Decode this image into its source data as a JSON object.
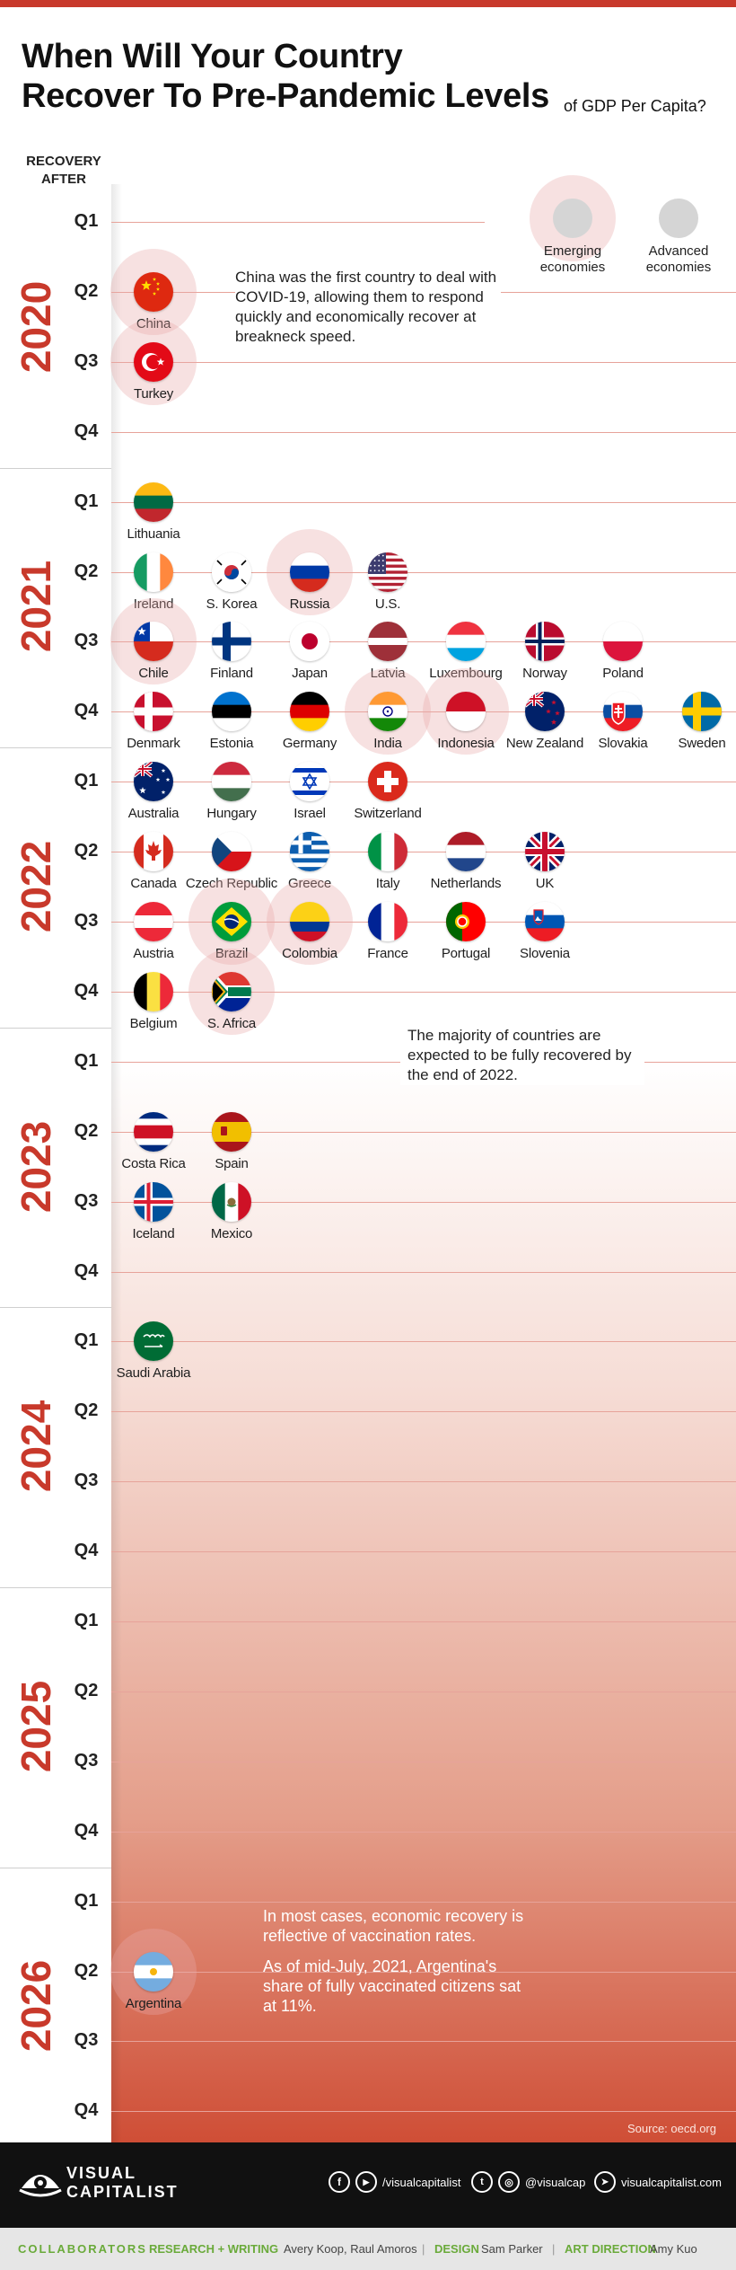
{
  "title": {
    "line1": "When Will Your Country",
    "line2": "Recover To Pre-Pandemic Levels",
    "suffix": "of GDP Per Capita?"
  },
  "recovery_header": {
    "line1": "RECOVERY",
    "line2": "AFTER"
  },
  "legend": {
    "emerging": {
      "line1": "Emerging",
      "line2": "economies"
    },
    "advanced": {
      "line1": "Advanced",
      "line2": "economies"
    },
    "circle_color": "#d5d5d5",
    "highlight_color": "#e9aaaa"
  },
  "colors": {
    "accent": "#c8392b",
    "gridline": "#e7a39a",
    "footer": "#111111",
    "collaborators": "#6aaa3a"
  },
  "years": [
    {
      "year": "2020",
      "quarters": [
        "Q1",
        "Q2",
        "Q3",
        "Q4"
      ]
    },
    {
      "year": "2021",
      "quarters": [
        "Q1",
        "Q2",
        "Q3",
        "Q4"
      ]
    },
    {
      "year": "2022",
      "quarters": [
        "Q1",
        "Q2",
        "Q3",
        "Q4"
      ]
    },
    {
      "year": "2023",
      "quarters": [
        "Q1",
        "Q2",
        "Q3",
        "Q4"
      ]
    },
    {
      "year": "2024",
      "quarters": [
        "Q1",
        "Q2",
        "Q3",
        "Q4"
      ]
    },
    {
      "year": "2025",
      "quarters": [
        "Q1",
        "Q2",
        "Q3",
        "Q4"
      ]
    },
    {
      "year": "2026",
      "quarters": [
        "Q1",
        "Q2",
        "Q3",
        "Q4"
      ]
    }
  ],
  "countries": [
    {
      "name": "China",
      "year": 2020,
      "quarter": "Q2",
      "economy": "emerging",
      "flag": "china"
    },
    {
      "name": "Turkey",
      "year": 2020,
      "quarter": "Q3",
      "economy": "emerging",
      "flag": "turkey"
    },
    {
      "name": "Lithuania",
      "year": 2021,
      "quarter": "Q1",
      "economy": "advanced",
      "flag": "lithuania"
    },
    {
      "name": "Ireland",
      "year": 2021,
      "quarter": "Q2",
      "economy": "advanced",
      "flag": "ireland"
    },
    {
      "name": "S. Korea",
      "year": 2021,
      "quarter": "Q2",
      "economy": "advanced",
      "flag": "skorea"
    },
    {
      "name": "Russia",
      "year": 2021,
      "quarter": "Q2",
      "economy": "emerging",
      "flag": "russia"
    },
    {
      "name": "U.S.",
      "year": 2021,
      "quarter": "Q2",
      "economy": "advanced",
      "flag": "usa"
    },
    {
      "name": "Chile",
      "year": 2021,
      "quarter": "Q3",
      "economy": "emerging",
      "flag": "chile"
    },
    {
      "name": "Finland",
      "year": 2021,
      "quarter": "Q3",
      "economy": "advanced",
      "flag": "finland"
    },
    {
      "name": "Japan",
      "year": 2021,
      "quarter": "Q3",
      "economy": "advanced",
      "flag": "japan"
    },
    {
      "name": "Latvia",
      "year": 2021,
      "quarter": "Q3",
      "economy": "advanced",
      "flag": "latvia"
    },
    {
      "name": "Luxembourg",
      "year": 2021,
      "quarter": "Q3",
      "economy": "advanced",
      "flag": "luxembourg"
    },
    {
      "name": "Norway",
      "year": 2021,
      "quarter": "Q3",
      "economy": "advanced",
      "flag": "norway"
    },
    {
      "name": "Poland",
      "year": 2021,
      "quarter": "Q3",
      "economy": "advanced",
      "flag": "poland"
    },
    {
      "name": "Denmark",
      "year": 2021,
      "quarter": "Q4",
      "economy": "advanced",
      "flag": "denmark"
    },
    {
      "name": "Estonia",
      "year": 2021,
      "quarter": "Q4",
      "economy": "advanced",
      "flag": "estonia"
    },
    {
      "name": "Germany",
      "year": 2021,
      "quarter": "Q4",
      "economy": "advanced",
      "flag": "germany"
    },
    {
      "name": "India",
      "year": 2021,
      "quarter": "Q4",
      "economy": "emerging",
      "flag": "india"
    },
    {
      "name": "Indonesia",
      "year": 2021,
      "quarter": "Q4",
      "economy": "emerging",
      "flag": "indonesia"
    },
    {
      "name": "New Zealand",
      "year": 2021,
      "quarter": "Q4",
      "economy": "advanced",
      "flag": "newzealand"
    },
    {
      "name": "Slovakia",
      "year": 2021,
      "quarter": "Q4",
      "economy": "advanced",
      "flag": "slovakia"
    },
    {
      "name": "Sweden",
      "year": 2021,
      "quarter": "Q4",
      "economy": "advanced",
      "flag": "sweden"
    },
    {
      "name": "Australia",
      "year": 2022,
      "quarter": "Q1",
      "economy": "advanced",
      "flag": "australia"
    },
    {
      "name": "Hungary",
      "year": 2022,
      "quarter": "Q1",
      "economy": "advanced",
      "flag": "hungary"
    },
    {
      "name": "Israel",
      "year": 2022,
      "quarter": "Q1",
      "economy": "advanced",
      "flag": "israel"
    },
    {
      "name": "Switzerland",
      "year": 2022,
      "quarter": "Q1",
      "economy": "advanced",
      "flag": "switzerland"
    },
    {
      "name": "Canada",
      "year": 2022,
      "quarter": "Q2",
      "economy": "advanced",
      "flag": "canada"
    },
    {
      "name": "Czech Republic",
      "year": 2022,
      "quarter": "Q2",
      "economy": "advanced",
      "flag": "czech"
    },
    {
      "name": "Greece",
      "year": 2022,
      "quarter": "Q2",
      "economy": "advanced",
      "flag": "greece"
    },
    {
      "name": "Italy",
      "year": 2022,
      "quarter": "Q2",
      "economy": "advanced",
      "flag": "italy"
    },
    {
      "name": "Netherlands",
      "year": 2022,
      "quarter": "Q2",
      "economy": "advanced",
      "flag": "netherlands"
    },
    {
      "name": "UK",
      "year": 2022,
      "quarter": "Q2",
      "economy": "advanced",
      "flag": "uk"
    },
    {
      "name": "Austria",
      "year": 2022,
      "quarter": "Q3",
      "economy": "advanced",
      "flag": "austria"
    },
    {
      "name": "Brazil",
      "year": 2022,
      "quarter": "Q3",
      "economy": "emerging",
      "flag": "brazil"
    },
    {
      "name": "Colombia",
      "year": 2022,
      "quarter": "Q3",
      "economy": "emerging",
      "flag": "colombia"
    },
    {
      "name": "France",
      "year": 2022,
      "quarter": "Q3",
      "economy": "advanced",
      "flag": "france"
    },
    {
      "name": "Portugal",
      "year": 2022,
      "quarter": "Q3",
      "economy": "advanced",
      "flag": "portugal"
    },
    {
      "name": "Slovenia",
      "year": 2022,
      "quarter": "Q3",
      "economy": "advanced",
      "flag": "slovenia"
    },
    {
      "name": "Belgium",
      "year": 2022,
      "quarter": "Q4",
      "economy": "advanced",
      "flag": "belgium"
    },
    {
      "name": "S. Africa",
      "year": 2022,
      "quarter": "Q4",
      "economy": "emerging",
      "flag": "southafrica"
    },
    {
      "name": "Costa Rica",
      "year": 2023,
      "quarter": "Q2",
      "economy": "advanced",
      "flag": "costarica"
    },
    {
      "name": "Spain",
      "year": 2023,
      "quarter": "Q2",
      "economy": "advanced",
      "flag": "spain"
    },
    {
      "name": "Iceland",
      "year": 2023,
      "quarter": "Q3",
      "economy": "advanced",
      "flag": "iceland"
    },
    {
      "name": "Mexico",
      "year": 2023,
      "quarter": "Q3",
      "economy": "advanced",
      "flag": "mexico"
    },
    {
      "name": "Saudi Arabia",
      "year": 2024,
      "quarter": "Q1",
      "economy": "advanced",
      "flag": "saudi"
    },
    {
      "name": "Argentina",
      "year": 2026,
      "quarter": "Q2",
      "economy": "emerging",
      "flag": "argentina"
    }
  ],
  "notes": {
    "china": "China was the first country to deal with COVID-19, allowing them to respond quickly and economically recover at breakneck speed.",
    "majority": "The majority of countries are expected to be fully recovered by the end of 2022.",
    "vaccination": "In most cases, economic recovery is reflective of vaccination rates.",
    "argentina": "As of mid-July, 2021, Argentina's share of fully vaccinated citizens sat at 11%."
  },
  "source": "Source: oecd.org",
  "footer": {
    "logo_line1": "VISUAL",
    "logo_line2": "CAPITALIST",
    "facebook_youtube_handle": "/visualcapitalist",
    "twitter_instagram_handle": "@visualcap",
    "website": "visualcapitalist.com"
  },
  "credits": {
    "label": "COLLABORATORS",
    "research_role": "RESEARCH + WRITING",
    "research_names": "Avery Koop, Raul Amoros",
    "design_role": "DESIGN",
    "design_names": "Sam Parker",
    "art_role": "ART DIRECTION",
    "art_names": "Amy Kuo"
  }
}
